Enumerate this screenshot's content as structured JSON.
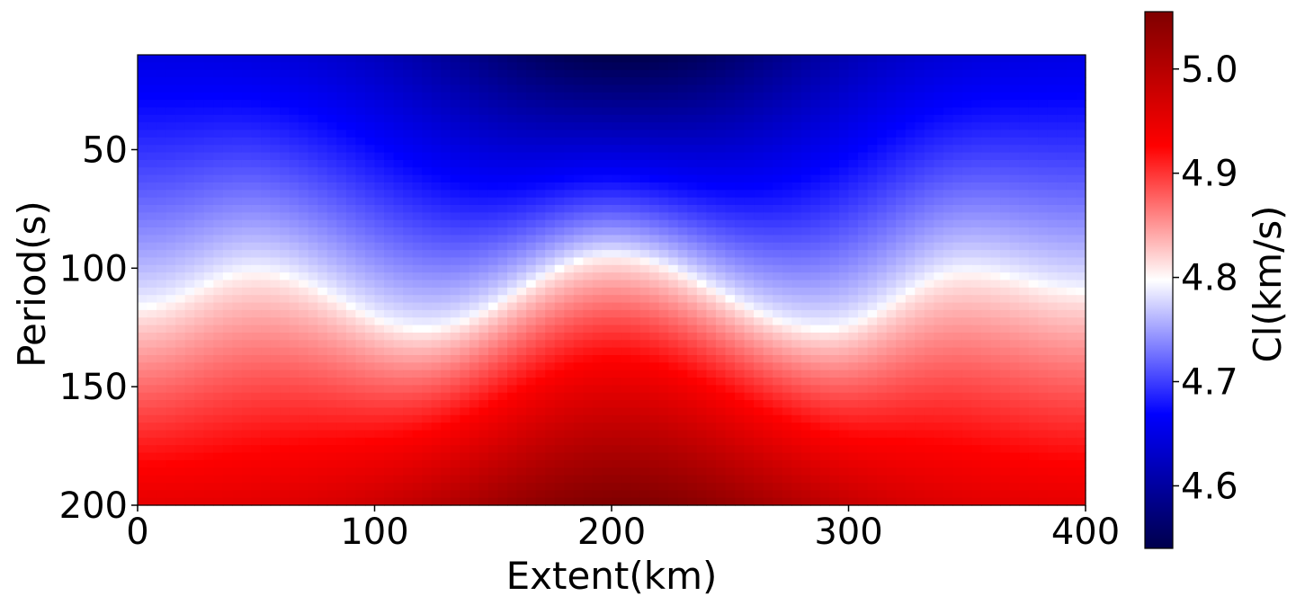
{
  "chart_data": {
    "type": "heatmap",
    "title": "",
    "xlabel": "Extent(km)",
    "ylabel": "Period(s)",
    "xlim": [
      0,
      400
    ],
    "ylim": [
      200,
      10
    ],
    "x_inverted": false,
    "y_inverted": true,
    "xticks": [
      0,
      100,
      200,
      300,
      400
    ],
    "yticks": [
      50,
      100,
      150,
      200
    ],
    "grid": false,
    "colormap": "seismic",
    "colormap_stops": [
      "#00004c",
      "#0000ff",
      "#ffffff",
      "#ff0000",
      "#7f0000"
    ],
    "colorbar": {
      "label": "Cl(km/s)",
      "vmin": 4.54,
      "vmax": 5.055,
      "ticks": [
        4.6,
        4.7,
        4.8,
        4.9,
        5.0
      ],
      "tick_labels": [
        "4.6",
        "4.7",
        "4.8",
        "4.9",
        "5.0"
      ]
    },
    "description_of_field": {
      "x": [
        0,
        50,
        120,
        200,
        290,
        350,
        400
      ],
      "white_contour_period": [
        117,
        102,
        126,
        95,
        126,
        102,
        110
      ],
      "surface_min_velocity": 4.54,
      "surface_min_at_x": 200,
      "deep_max_velocity": 5.055,
      "deep_max_at_x": 205
    }
  }
}
